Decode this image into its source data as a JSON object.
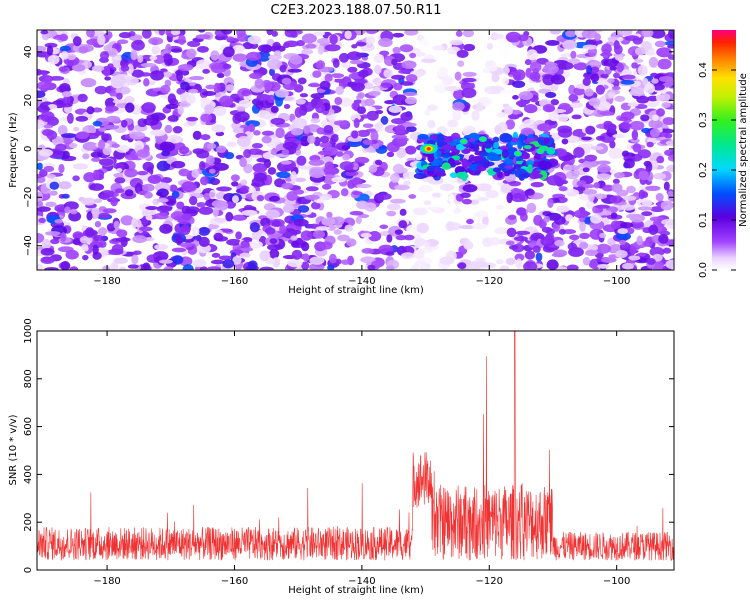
{
  "title": "C2E3.2023.188.07.50.R11",
  "chart_data": [
    {
      "type": "heatmap",
      "xlabel": "Height of straight line (km)",
      "ylabel": "Frequency (Hz)",
      "xlim": [
        -191,
        -91
      ],
      "ylim": [
        -50,
        49
      ],
      "xticks": [
        -180,
        -160,
        -140,
        -120,
        -100
      ],
      "yticks": [
        -40,
        -20,
        0,
        20,
        40
      ],
      "colorbar": {
        "label": "Normalized spectral amplitude",
        "range": [
          0,
          0.48
        ],
        "ticks": [
          0.0,
          0.1,
          0.2,
          0.3,
          0.4
        ]
      },
      "features": [
        {
          "name": "noise",
          "x_range": [
            -191,
            -91
          ],
          "typical_amplitude": 0.08
        },
        {
          "name": "signal-band",
          "x_range": [
            -131,
            -110
          ],
          "y_range": [
            -10,
            7
          ],
          "peak_amplitude": 0.45,
          "peak_x": -129.5,
          "peak_y": 0
        },
        {
          "name": "quiet-gap",
          "x_range": [
            -132,
            -125
          ]
        },
        {
          "name": "quiet-gap",
          "x_range": [
            -123,
            -117
          ]
        }
      ]
    },
    {
      "type": "line",
      "xlabel": "Height of straight line (km)",
      "ylabel": "SNR (10 * v/v)",
      "xlim": [
        -191,
        -91
      ],
      "ylim": [
        0,
        1000
      ],
      "xticks": [
        -180,
        -160,
        -140,
        -120,
        -100
      ],
      "yticks": [
        0,
        200,
        400,
        600,
        800,
        1000
      ],
      "color": "#f03232",
      "series": [
        {
          "x_step": 0.05,
          "segments": [
            {
              "x": [
                -191,
                -132
              ],
              "base": 110,
              "noise": 70,
              "spike_max": 370
            },
            {
              "x": [
                -132,
                -129
              ],
              "base": 380,
              "noise": 120,
              "spike_max": 730
            },
            {
              "x": [
                -129,
                -110
              ],
              "base": 200,
              "noise": 160,
              "spike_max": 1000,
              "peak_x": -116
            },
            {
              "x": [
                -110,
                -91
              ],
              "base": 100,
              "noise": 60,
              "spike_max": 260
            }
          ]
        }
      ]
    }
  ]
}
